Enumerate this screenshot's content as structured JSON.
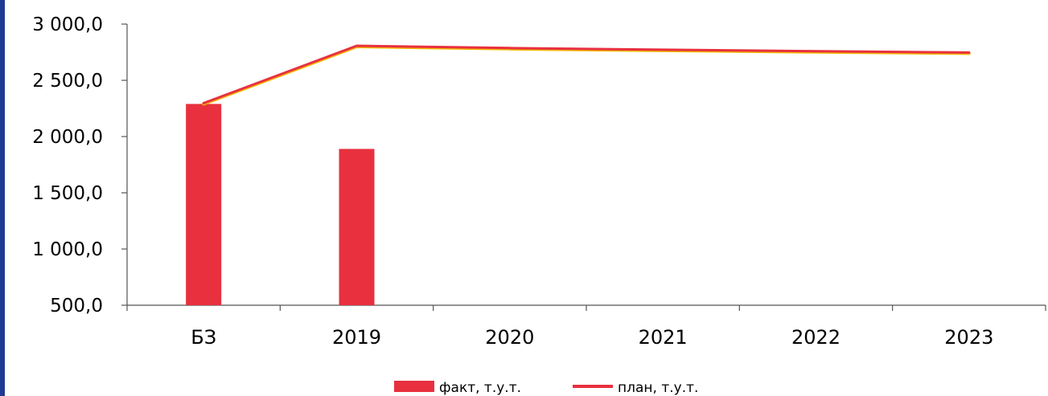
{
  "chart_data": {
    "type": "bar",
    "categories": [
      "БЗ",
      "2019",
      "2020",
      "2021",
      "2022",
      "2023"
    ],
    "series": [
      {
        "name": "факт, т.у.т.",
        "type": "bar",
        "values": [
          2290,
          1890,
          null,
          null,
          null,
          null
        ],
        "color": "#e8303f"
      },
      {
        "name": "план, т.у.т.",
        "type": "line",
        "values": [
          2290,
          2800,
          2780,
          2765,
          2752,
          2740
        ],
        "color": "#e8303f"
      }
    ],
    "ylim": [
      500,
      3000
    ],
    "yticks": [
      500,
      1000,
      1500,
      2000,
      2500,
      3000
    ],
    "ytick_labels": [
      "500,0",
      "1 000,0",
      "1 500,0",
      "2 000,0",
      "2 500,0",
      "3 000,0"
    ],
    "grid": false,
    "legend_position": "bottom",
    "title": "",
    "xlabel": "",
    "ylabel": ""
  }
}
